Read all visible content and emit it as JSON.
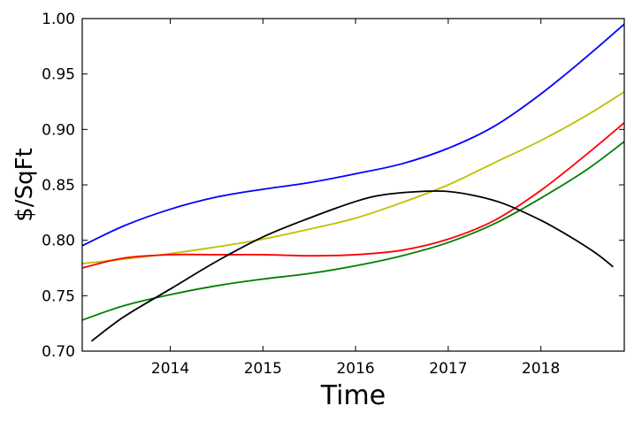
{
  "chart_data": {
    "type": "line",
    "title": "",
    "xlabel": "Time",
    "ylabel": "$/SqFt",
    "xlim": [
      2013.05,
      2018.9
    ],
    "ylim": [
      0.7,
      1.0
    ],
    "xticks": [
      2014,
      2015,
      2016,
      2017,
      2018
    ],
    "xtick_labels": [
      "2014",
      "2015",
      "2016",
      "2017",
      "2018"
    ],
    "yticks": [
      0.7,
      0.75,
      0.8,
      0.85,
      0.9,
      0.95,
      1.0
    ],
    "ytick_labels": [
      "0.70",
      "0.75",
      "0.80",
      "0.85",
      "0.90",
      "0.95",
      "1.00"
    ],
    "grid": false,
    "legend": "none",
    "series": [
      {
        "color": "#0000ff",
        "x": [
          2013.05,
          2013.5,
          2014.0,
          2014.5,
          2015.0,
          2015.5,
          2016.0,
          2016.5,
          2017.0,
          2017.5,
          2018.0,
          2018.5,
          2018.9
        ],
        "y": [
          0.795,
          0.813,
          0.828,
          0.839,
          0.846,
          0.852,
          0.86,
          0.869,
          0.883,
          0.903,
          0.932,
          0.966,
          0.995
        ]
      },
      {
        "color": "#bfbf00",
        "x": [
          2013.05,
          2013.5,
          2014.0,
          2014.5,
          2015.0,
          2015.5,
          2016.0,
          2016.5,
          2017.0,
          2017.5,
          2018.0,
          2018.5,
          2018.9
        ],
        "y": [
          0.779,
          0.783,
          0.788,
          0.794,
          0.801,
          0.81,
          0.82,
          0.834,
          0.85,
          0.87,
          0.89,
          0.913,
          0.934
        ]
      },
      {
        "color": "#ff0000",
        "x": [
          2013.05,
          2013.5,
          2014.0,
          2014.5,
          2015.0,
          2015.5,
          2016.0,
          2016.5,
          2017.0,
          2017.5,
          2018.0,
          2018.5,
          2018.9
        ],
        "y": [
          0.775,
          0.784,
          0.787,
          0.787,
          0.787,
          0.786,
          0.787,
          0.791,
          0.801,
          0.818,
          0.845,
          0.878,
          0.906
        ]
      },
      {
        "color": "#007f00",
        "x": [
          2013.05,
          2013.5,
          2014.0,
          2014.5,
          2015.0,
          2015.5,
          2016.0,
          2016.5,
          2017.0,
          2017.5,
          2018.0,
          2018.5,
          2018.9
        ],
        "y": [
          0.728,
          0.741,
          0.751,
          0.759,
          0.765,
          0.77,
          0.777,
          0.786,
          0.798,
          0.815,
          0.838,
          0.864,
          0.889
        ]
      },
      {
        "color": "#000000",
        "x": [
          2013.15,
          2013.5,
          2014.0,
          2014.5,
          2015.0,
          2015.5,
          2016.0,
          2016.3,
          2016.7,
          2017.0,
          2017.3,
          2017.6,
          2018.0,
          2018.3,
          2018.6,
          2018.78
        ],
        "y": [
          0.709,
          0.731,
          0.756,
          0.781,
          0.803,
          0.82,
          0.835,
          0.841,
          0.844,
          0.844,
          0.84,
          0.833,
          0.818,
          0.804,
          0.788,
          0.776
        ]
      }
    ]
  }
}
